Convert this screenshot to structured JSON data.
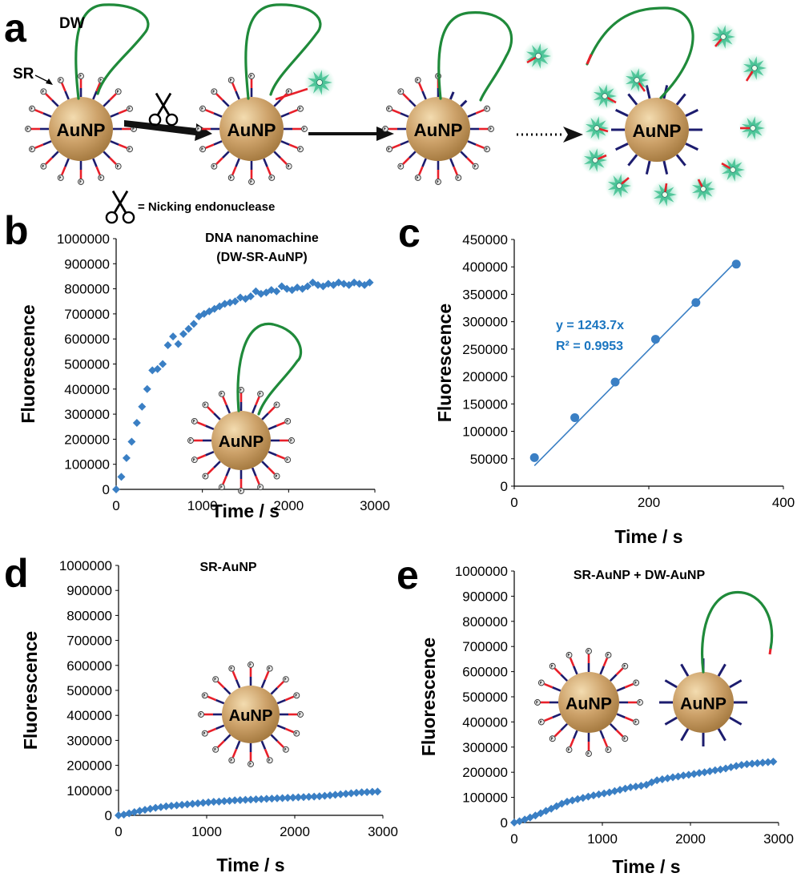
{
  "panel_letters": [
    "a",
    "b",
    "c",
    "d",
    "e"
  ],
  "schematic": {
    "particle_label": "AuNP",
    "dw_label": "DW",
    "sr_label": "SR",
    "legend_text": "= Nicking endonuclease",
    "icons": [
      "scissors-icon",
      "arrow-icon",
      "dotted-arrow-icon",
      "fluorophore-icon",
      "quencher-icon"
    ],
    "colors": {
      "gold": "#c9a064",
      "walker": "#1f8a3a",
      "strand_red": "#e8202a",
      "strand_navy": "#1c1c6e",
      "fluor": "#3fbf8f",
      "arrow": "#111111"
    }
  },
  "chart_data": [
    {
      "id": "b",
      "type": "scatter",
      "title": "DNA nanomachine",
      "subtitle": "(DW-SR-AuNP)",
      "xlabel": "Time / s",
      "ylabel": "Fluorescence",
      "xlim": [
        0,
        3000
      ],
      "ylim": [
        0,
        1000000
      ],
      "x_ticks": [
        0,
        1000,
        2000,
        3000
      ],
      "y_ticks": [
        0,
        100000,
        200000,
        300000,
        400000,
        500000,
        600000,
        700000,
        800000,
        900000,
        1000000
      ],
      "color": "#3a7fc4",
      "marker": "diamond",
      "series": [
        {
          "x": [
            0,
            60,
            120,
            180,
            240,
            300,
            360,
            420,
            480,
            540,
            600,
            660,
            720,
            780,
            840,
            900,
            960,
            1020,
            1080,
            1140,
            1200,
            1260,
            1320,
            1380,
            1440,
            1500,
            1560,
            1620,
            1680,
            1740,
            1800,
            1860,
            1920,
            1980,
            2040,
            2100,
            2160,
            2220,
            2280,
            2340,
            2400,
            2460,
            2520,
            2580,
            2640,
            2700,
            2760,
            2820,
            2880,
            2940
          ],
          "y": [
            0,
            50000,
            125000,
            190000,
            265000,
            330000,
            400000,
            475000,
            480000,
            500000,
            575000,
            610000,
            580000,
            620000,
            640000,
            660000,
            690000,
            700000,
            710000,
            720000,
            730000,
            740000,
            745000,
            750000,
            765000,
            760000,
            770000,
            790000,
            780000,
            785000,
            795000,
            790000,
            810000,
            800000,
            795000,
            805000,
            800000,
            810000,
            825000,
            815000,
            810000,
            820000,
            815000,
            825000,
            820000,
            815000,
            825000,
            820000,
            815000,
            825000
          ]
        }
      ]
    },
    {
      "id": "c",
      "type": "scatter",
      "xlabel": "Time / s",
      "ylabel": "Fluorescence",
      "xlim": [
        0,
        400
      ],
      "ylim": [
        0,
        450000
      ],
      "x_ticks": [
        0,
        200,
        400
      ],
      "y_ticks": [
        0,
        50000,
        100000,
        150000,
        200000,
        250000,
        300000,
        350000,
        400000,
        450000
      ],
      "color": "#3a7fc4",
      "marker": "circle",
      "series": [
        {
          "x": [
            30,
            90,
            150,
            210,
            270,
            330
          ],
          "y": [
            52000,
            125000,
            190000,
            268000,
            335000,
            405000
          ]
        }
      ],
      "fit": {
        "slope": 1243.7,
        "x_range": [
          30,
          330
        ]
      },
      "annotations": [
        "y = 1243.7x",
        "R² = 0.9953"
      ]
    },
    {
      "id": "d",
      "type": "scatter",
      "title": "SR-AuNP",
      "xlabel": "Time / s",
      "ylabel": "Fluorescence",
      "xlim": [
        0,
        3000
      ],
      "ylim": [
        0,
        1000000
      ],
      "x_ticks": [
        0,
        1000,
        2000,
        3000
      ],
      "y_ticks": [
        0,
        100000,
        200000,
        300000,
        400000,
        500000,
        600000,
        700000,
        800000,
        900000,
        1000000
      ],
      "color": "#3a7fc4",
      "marker": "diamond",
      "series": [
        {
          "x": [
            0,
            60,
            120,
            180,
            240,
            300,
            360,
            420,
            480,
            540,
            600,
            660,
            720,
            780,
            840,
            900,
            960,
            1020,
            1080,
            1140,
            1200,
            1260,
            1320,
            1380,
            1440,
            1500,
            1560,
            1620,
            1680,
            1740,
            1800,
            1860,
            1920,
            1980,
            2040,
            2100,
            2160,
            2220,
            2280,
            2340,
            2400,
            2460,
            2520,
            2580,
            2640,
            2700,
            2760,
            2820,
            2880,
            2940
          ],
          "y": [
            0,
            3000,
            8000,
            13000,
            18000,
            22000,
            26000,
            30000,
            33000,
            36000,
            38000,
            40000,
            42000,
            44000,
            46000,
            48000,
            50000,
            52000,
            54000,
            55000,
            57000,
            58000,
            60000,
            61000,
            62000,
            63000,
            64000,
            65000,
            66000,
            67000,
            68000,
            69000,
            70000,
            71000,
            72000,
            73000,
            74000,
            75000,
            76000,
            78000,
            80000,
            82000,
            84000,
            86000,
            88000,
            90000,
            92000,
            93000,
            94000,
            95000
          ]
        }
      ]
    },
    {
      "id": "e",
      "type": "scatter",
      "title": "SR-AuNP + DW-AuNP",
      "xlabel": "Time / s",
      "ylabel": "Fluorescence",
      "xlim": [
        0,
        3000
      ],
      "ylim": [
        0,
        1000000
      ],
      "x_ticks": [
        0,
        1000,
        2000,
        3000
      ],
      "y_ticks": [
        0,
        100000,
        200000,
        300000,
        400000,
        500000,
        600000,
        700000,
        800000,
        900000,
        1000000
      ],
      "color": "#3a7fc4",
      "marker": "diamond",
      "series": [
        {
          "x": [
            0,
            60,
            120,
            180,
            240,
            300,
            360,
            420,
            480,
            540,
            600,
            660,
            720,
            780,
            840,
            900,
            960,
            1020,
            1080,
            1140,
            1200,
            1260,
            1320,
            1380,
            1440,
            1500,
            1560,
            1620,
            1680,
            1740,
            1800,
            1860,
            1920,
            1980,
            2040,
            2100,
            2160,
            2220,
            2280,
            2340,
            2400,
            2460,
            2520,
            2580,
            2640,
            2700,
            2760,
            2820,
            2880,
            2940
          ],
          "y": [
            0,
            5000,
            12000,
            20000,
            28000,
            37000,
            46000,
            55000,
            65000,
            75000,
            83000,
            88000,
            93000,
            98000,
            103000,
            108000,
            112000,
            116000,
            120000,
            125000,
            130000,
            135000,
            140000,
            143000,
            146000,
            150000,
            160000,
            168000,
            172000,
            176000,
            180000,
            183000,
            187000,
            190000,
            193000,
            197000,
            200000,
            204000,
            208000,
            211000,
            215000,
            220000,
            225000,
            229000,
            232000,
            234000,
            236000,
            238000,
            240000,
            242000
          ]
        }
      ]
    }
  ]
}
